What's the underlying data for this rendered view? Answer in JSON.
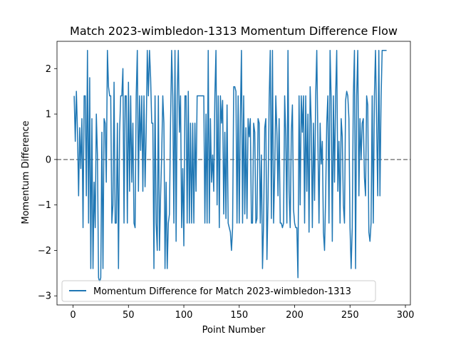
{
  "chart_data": {
    "type": "line",
    "title": "Match 2023-wimbledon-1313 Momentum Difference Flow",
    "xlabel": "Point Number",
    "ylabel": "Momentum Difference",
    "xlim": [
      -14.5,
      304.5
    ],
    "ylim": [
      -3.2,
      2.6
    ],
    "xticks": [
      0,
      50,
      100,
      150,
      200,
      250,
      300
    ],
    "yticks": [
      -3,
      -2,
      -1,
      0,
      1,
      2
    ],
    "grid": false,
    "legend_position": "lower-left",
    "reference_line": {
      "y": 0,
      "style": "dashed",
      "color": "#808080"
    },
    "series": [
      {
        "name": "Momentum Difference for Match 2023-wimbledon-1313",
        "color": "#1f77b4",
        "x_start": 1,
        "values": [
          1.4,
          0.4,
          1.5,
          0.6,
          -0.8,
          0.7,
          -0.2,
          0.9,
          -1.5,
          1.4,
          1.4,
          -0.8,
          2.4,
          -1.4,
          1.8,
          -2.4,
          0.9,
          -2.4,
          -0.5,
          -1.5,
          1.0,
          0.1,
          -2.6,
          -2.7,
          -2.6,
          0.6,
          -2.4,
          0.9,
          0.8,
          -0.5,
          2.4,
          1.6,
          1.4,
          1.4,
          -1.4,
          -1.0,
          1.7,
          -1.4,
          -1.4,
          0.8,
          -2.4,
          0.6,
          1.4,
          1.4,
          2.0,
          -1.4,
          1.4,
          1.4,
          -1.4,
          1.7,
          -0.7,
          1.4,
          -0.5,
          0.8,
          -1.4,
          -1.5,
          1.4,
          2.4,
          -0.7,
          1.4,
          0.2,
          1.4,
          -0.7,
          1.4,
          -0.6,
          0.6,
          2.4,
          1.4,
          2.4,
          1.8,
          0.8,
          0.8,
          -2.4,
          1.4,
          -1.4,
          -2.0,
          1.4,
          -2.0,
          -0.8,
          0.1,
          1.4,
          0.8,
          -2.4,
          -0.5,
          -2.4,
          -1.4,
          -1.2,
          0.8,
          2.4,
          1.4,
          -1.4,
          2.4,
          -1.8,
          1.4,
          2.4,
          0.6,
          1.4,
          -1.5,
          -0.2,
          -1.9,
          1.4,
          1.4,
          -1.4,
          1.5,
          -1.4,
          0.8,
          -1.4,
          0.8,
          -1.4,
          0.8,
          -0.7,
          1.4,
          1.4,
          1.4,
          1.4,
          1.4,
          1.4,
          1.4,
          -1.4,
          1.0,
          -1.4,
          2.4,
          -1.4,
          0.9,
          -0.5,
          0.1,
          -0.7,
          1.4,
          2.4,
          -1.0,
          1.4,
          -1.5,
          1.4,
          0.8,
          1.3,
          -1.2,
          0.6,
          -1.3,
          1.2,
          -1.4,
          -1.5,
          -1.6,
          -2.0,
          -1.5,
          1.6,
          1.6,
          1.5,
          -1.4,
          1.4,
          -1.4,
          0.9,
          2.4,
          -1.4,
          1.4,
          -1.2,
          0.7,
          -1.3,
          0.9,
          0.5,
          0.9,
          -1.4,
          -1.4,
          0.8,
          0.6,
          -1.4,
          -1.3,
          0.9,
          0.8,
          -1.4,
          0.1,
          -2.4,
          -1.4,
          0.7,
          0.9,
          -2.2,
          -0.9,
          1.3,
          2.4,
          -1.3,
          2.4,
          -1.4,
          -0.3,
          1.4,
          0.6,
          -0.8,
          0.9,
          -1.4,
          -1.4,
          -1.5,
          -1.4,
          1.4,
          0.5,
          -1.4,
          2.4,
          -0.7,
          -1.5,
          0.6,
          1.2,
          -1.1,
          -1.4,
          -1.5,
          -1.5,
          -2.6,
          1.4,
          -1.0,
          1.4,
          0.6,
          1.4,
          -1.4,
          1.4,
          -0.7,
          1.0,
          -1.6,
          1.6,
          0.8,
          -1.5,
          0.8,
          -0.9,
          1.4,
          2.4,
          0.4,
          -1.4,
          0.8,
          -0.1,
          0.4,
          -1.6,
          -2.0,
          -0.8,
          0.8,
          1.4,
          -1.4,
          2.4,
          1.3,
          -1.8,
          1.4,
          -0.5,
          1.4,
          2.4,
          -0.7,
          0.4,
          -1.4,
          0.9,
          0.5,
          -1.0,
          -1.4,
          1.3,
          1.5,
          1.4,
          0.9,
          -1.5,
          -2.4,
          -1.5,
          1.4,
          2.4,
          -2.4,
          1.4,
          2.4,
          -0.8,
          0.9,
          0.0,
          0.8,
          0.9,
          -0.4,
          -0.8,
          1.4,
          1.2,
          -1.6,
          -1.8,
          -1.4,
          1.4,
          -1.4,
          1.4,
          2.4,
          0.8,
          -0.8,
          2.4,
          -0.8,
          1.3,
          2.4,
          2.4,
          2.4,
          2.4,
          2.4
        ]
      }
    ]
  }
}
